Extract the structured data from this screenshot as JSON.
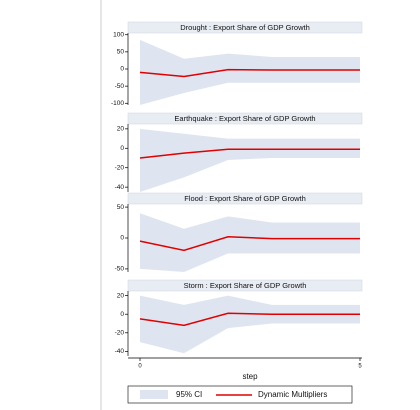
{
  "chart_data": [
    {
      "type": "line",
      "title": "Drought : Export Share of GDP Growth",
      "x": [
        0,
        1,
        2,
        3,
        4,
        5
      ],
      "xlim": [
        0,
        5
      ],
      "ylim": [
        -105,
        105
      ],
      "yticks": [
        -100,
        -50,
        0,
        50,
        100
      ],
      "series": [
        {
          "name": "95% CI",
          "color": "#dfe5f0",
          "lower": [
            -105,
            -70,
            -40,
            -40,
            -40,
            -40
          ],
          "upper": [
            85,
            30,
            45,
            35,
            35,
            35
          ]
        },
        {
          "name": "Dynamic Multipliers",
          "color": "#e00000",
          "values": [
            -10,
            -22,
            -2,
            -3,
            -3,
            -3
          ]
        }
      ]
    },
    {
      "type": "line",
      "title": "Earthquake : Export Share of GDP Growth",
      "x": [
        0,
        1,
        2,
        3,
        4,
        5
      ],
      "xlim": [
        0,
        5
      ],
      "ylim": [
        -45,
        25
      ],
      "yticks": [
        -40,
        -20,
        0,
        20
      ],
      "series": [
        {
          "name": "95% CI",
          "color": "#dfe5f0",
          "lower": [
            -45,
            -30,
            -12,
            -10,
            -10,
            -10
          ],
          "upper": [
            20,
            15,
            10,
            10,
            10,
            10
          ]
        },
        {
          "name": "Dynamic Multipliers",
          "color": "#e00000",
          "values": [
            -10,
            -5,
            -1,
            -1,
            -1,
            -1
          ]
        }
      ]
    },
    {
      "type": "line",
      "title": "Flood : Export Share of GDP Growth",
      "x": [
        0,
        1,
        2,
        3,
        4,
        5
      ],
      "xlim": [
        0,
        5
      ],
      "ylim": [
        -55,
        55
      ],
      "yticks": [
        -50,
        0,
        50
      ],
      "series": [
        {
          "name": "95% CI",
          "color": "#dfe5f0",
          "lower": [
            -50,
            -55,
            -25,
            -25,
            -25,
            -25
          ],
          "upper": [
            40,
            15,
            35,
            25,
            25,
            25
          ]
        },
        {
          "name": "Dynamic Multipliers",
          "color": "#e00000",
          "values": [
            -5,
            -20,
            2,
            -1,
            -1,
            -1
          ]
        }
      ]
    },
    {
      "type": "line",
      "title": "Storm : Export Share of GDP Growth",
      "x": [
        0,
        1,
        2,
        3,
        4,
        5
      ],
      "xlim": [
        0,
        5
      ],
      "xticks": [
        0,
        5
      ],
      "xlabel": "step",
      "ylim": [
        -45,
        25
      ],
      "yticks": [
        -40,
        -20,
        0,
        20
      ],
      "series": [
        {
          "name": "95% CI",
          "color": "#dfe5f0",
          "lower": [
            -30,
            -42,
            -15,
            -10,
            -10,
            -10
          ],
          "upper": [
            20,
            10,
            20,
            10,
            10,
            10
          ]
        },
        {
          "name": "Dynamic Multipliers",
          "color": "#e00000",
          "values": [
            -5,
            -12,
            1,
            0,
            0,
            0
          ]
        }
      ]
    }
  ]
}
